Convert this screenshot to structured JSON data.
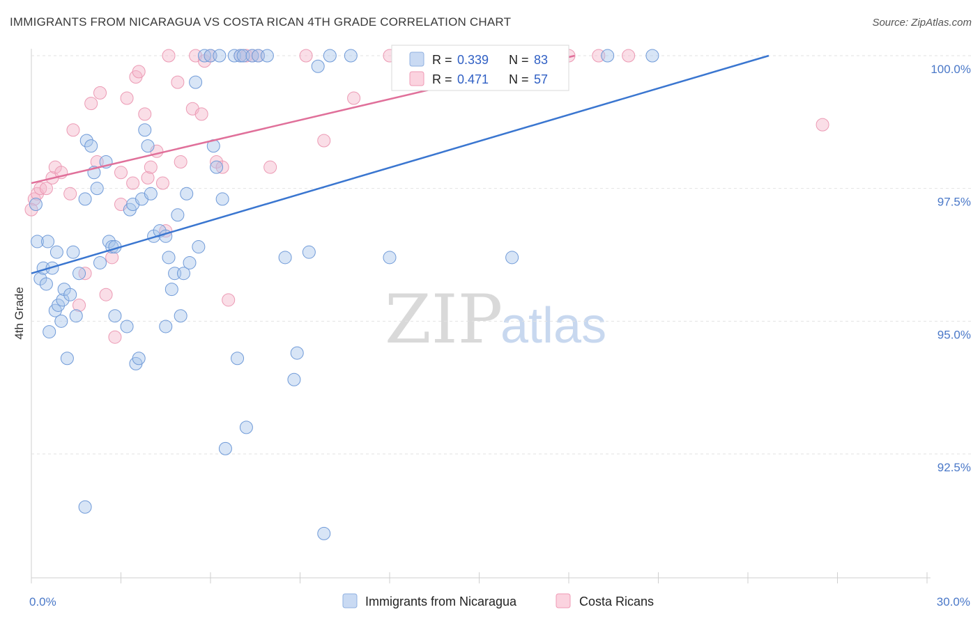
{
  "header": {
    "title": "IMMIGRANTS FROM NICARAGUA VS COSTA RICAN 4TH GRADE CORRELATION CHART",
    "source": "Source: ZipAtlas.com"
  },
  "watermark": {
    "part1": "ZIP",
    "part2": "atlas"
  },
  "legend_top": {
    "rows": [
      {
        "r_label": "R =",
        "r_value": "0.339",
        "n_label": "N =",
        "n_value": "83",
        "color": "#a9c5ec"
      },
      {
        "r_label": "R =",
        "r_value": "0.471",
        "n_label": "N =",
        "n_value": "57",
        "color": "#f5b5c9"
      }
    ]
  },
  "legend_bottom": {
    "items": [
      {
        "label": "Immigrants from Nicaragua",
        "color": "#a9c5ec"
      },
      {
        "label": "Costa Ricans",
        "color": "#f5b5c9"
      }
    ]
  },
  "chart_data": {
    "type": "scatter",
    "title": "IMMIGRANTS FROM NICARAGUA VS COSTA RICAN 4TH GRADE CORRELATION CHART",
    "xlabel": "",
    "ylabel": "4th Grade",
    "xlim": [
      0,
      30
    ],
    "ylim": [
      90.2,
      100.2
    ],
    "x_tick_labels": [
      "0.0%",
      "30.0%"
    ],
    "y_ticks": [
      92.5,
      95.0,
      97.5,
      100.0
    ],
    "y_tick_labels": [
      "92.5%",
      "95.0%",
      "97.5%",
      "100.0%"
    ],
    "grid": true,
    "legend_position": "top-center",
    "colors": {
      "blue_fill": "#a9c5ec",
      "blue_line": "#3a76d0",
      "pink_fill": "#f5b5c9",
      "pink_line": "#e0709a",
      "tick_text": "#4a78c8"
    },
    "series": [
      {
        "name": "Immigrants from Nicaragua",
        "color": "#a9c5ec",
        "trend": {
          "x": [
            0.0,
            24.7
          ],
          "y": [
            95.9,
            100.0
          ]
        },
        "points": [
          [
            0.15,
            97.2
          ],
          [
            0.2,
            96.5
          ],
          [
            0.3,
            95.8
          ],
          [
            0.4,
            96.0
          ],
          [
            0.5,
            95.7
          ],
          [
            0.55,
            96.5
          ],
          [
            0.6,
            94.8
          ],
          [
            0.7,
            96.0
          ],
          [
            0.8,
            95.2
          ],
          [
            0.85,
            96.3
          ],
          [
            0.9,
            95.3
          ],
          [
            1.0,
            95.0
          ],
          [
            1.05,
            95.4
          ],
          [
            1.1,
            95.6
          ],
          [
            1.2,
            94.3
          ],
          [
            1.3,
            95.5
          ],
          [
            1.4,
            96.3
          ],
          [
            1.5,
            95.1
          ],
          [
            1.6,
            95.9
          ],
          [
            1.8,
            97.3
          ],
          [
            1.85,
            98.4
          ],
          [
            2.0,
            98.3
          ],
          [
            2.1,
            97.8
          ],
          [
            2.2,
            97.5
          ],
          [
            2.3,
            96.1
          ],
          [
            2.5,
            98.0
          ],
          [
            2.6,
            96.5
          ],
          [
            2.7,
            96.4
          ],
          [
            2.8,
            96.4
          ],
          [
            3.2,
            94.9
          ],
          [
            3.3,
            97.1
          ],
          [
            3.4,
            97.2
          ],
          [
            3.5,
            94.2
          ],
          [
            3.6,
            94.3
          ],
          [
            3.7,
            97.3
          ],
          [
            3.8,
            98.6
          ],
          [
            3.9,
            98.3
          ],
          [
            4.0,
            97.4
          ],
          [
            4.1,
            96.6
          ],
          [
            4.3,
            96.7
          ],
          [
            4.5,
            94.9
          ],
          [
            4.6,
            96.2
          ],
          [
            4.7,
            95.6
          ],
          [
            4.8,
            95.9
          ],
          [
            4.9,
            97.0
          ],
          [
            5.0,
            95.1
          ],
          [
            5.1,
            95.9
          ],
          [
            5.2,
            97.4
          ],
          [
            5.3,
            96.1
          ],
          [
            5.5,
            99.5
          ],
          [
            5.6,
            96.4
          ],
          [
            5.8,
            100.0
          ],
          [
            6.0,
            100.0
          ],
          [
            6.1,
            98.3
          ],
          [
            6.2,
            97.9
          ],
          [
            6.3,
            100.0
          ],
          [
            6.4,
            97.3
          ],
          [
            6.5,
            92.6
          ],
          [
            6.8,
            100.0
          ],
          [
            6.9,
            94.3
          ],
          [
            7.0,
            100.0
          ],
          [
            7.1,
            100.0
          ],
          [
            7.2,
            93.0
          ],
          [
            7.4,
            100.0
          ],
          [
            7.6,
            100.0
          ],
          [
            7.9,
            100.0
          ],
          [
            8.5,
            96.2
          ],
          [
            8.8,
            93.9
          ],
          [
            8.9,
            94.4
          ],
          [
            9.3,
            96.3
          ],
          [
            9.6,
            99.8
          ],
          [
            9.8,
            91.0
          ],
          [
            10.0,
            100.0
          ],
          [
            10.7,
            100.0
          ],
          [
            12.0,
            96.2
          ],
          [
            12.5,
            100.0
          ],
          [
            16.1,
            96.2
          ],
          [
            17.0,
            99.6
          ],
          [
            19.3,
            100.0
          ],
          [
            20.8,
            100.0
          ],
          [
            1.8,
            91.5
          ],
          [
            2.8,
            95.1
          ],
          [
            4.5,
            96.6
          ]
        ]
      },
      {
        "name": "Costa Ricans",
        "color": "#f5b5c9",
        "trend": {
          "x": [
            0.0,
            18.2
          ],
          "y": [
            97.6,
            100.0
          ]
        },
        "points": [
          [
            0.1,
            97.3
          ],
          [
            0.2,
            97.4
          ],
          [
            0.3,
            97.5
          ],
          [
            0.5,
            97.5
          ],
          [
            0.7,
            97.7
          ],
          [
            0.8,
            97.9
          ],
          [
            1.0,
            97.8
          ],
          [
            1.3,
            97.4
          ],
          [
            1.4,
            98.6
          ],
          [
            1.6,
            95.3
          ],
          [
            1.8,
            95.9
          ],
          [
            2.0,
            99.1
          ],
          [
            2.2,
            98.0
          ],
          [
            2.3,
            99.3
          ],
          [
            2.5,
            95.5
          ],
          [
            2.8,
            94.7
          ],
          [
            3.0,
            97.2
          ],
          [
            3.2,
            99.2
          ],
          [
            3.4,
            97.6
          ],
          [
            3.5,
            99.6
          ],
          [
            3.6,
            99.7
          ],
          [
            3.8,
            98.9
          ],
          [
            3.9,
            97.7
          ],
          [
            4.0,
            97.9
          ],
          [
            4.2,
            98.2
          ],
          [
            4.4,
            97.6
          ],
          [
            4.5,
            96.7
          ],
          [
            4.6,
            100.0
          ],
          [
            4.9,
            99.5
          ],
          [
            5.0,
            98.0
          ],
          [
            5.4,
            99.0
          ],
          [
            5.5,
            100.0
          ],
          [
            5.7,
            98.9
          ],
          [
            5.8,
            99.9
          ],
          [
            6.0,
            100.0
          ],
          [
            6.2,
            98.0
          ],
          [
            6.4,
            97.9
          ],
          [
            6.6,
            95.4
          ],
          [
            7.0,
            100.0
          ],
          [
            7.2,
            100.0
          ],
          [
            7.4,
            100.0
          ],
          [
            7.6,
            100.0
          ],
          [
            8.0,
            97.9
          ],
          [
            9.2,
            100.0
          ],
          [
            9.8,
            98.4
          ],
          [
            10.8,
            99.2
          ],
          [
            12.0,
            100.0
          ],
          [
            13.5,
            100.0
          ],
          [
            16.8,
            100.0
          ],
          [
            17.0,
            100.0
          ],
          [
            18.0,
            100.0
          ],
          [
            19.0,
            100.0
          ],
          [
            20.0,
            100.0
          ],
          [
            26.5,
            98.7
          ],
          [
            0.0,
            97.1
          ],
          [
            2.7,
            96.2
          ],
          [
            3.0,
            97.8
          ]
        ]
      }
    ]
  }
}
